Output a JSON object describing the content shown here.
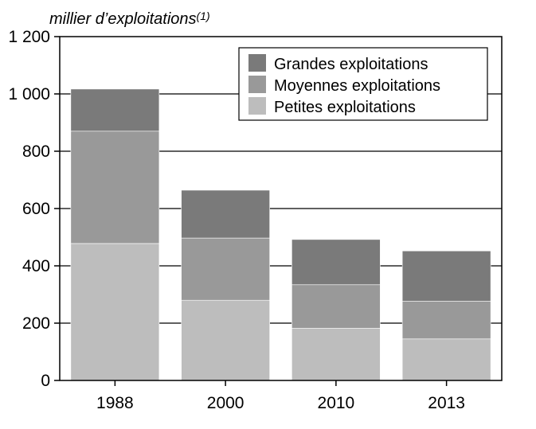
{
  "chart_data": {
    "type": "bar",
    "stacked": true,
    "title": "",
    "xlabel": "",
    "ylabel": "millier d’exploitations",
    "ylabel_note": "(1)",
    "ylim": [
      0,
      1200
    ],
    "yticks": [
      0,
      200,
      400,
      600,
      800,
      1000,
      1200
    ],
    "ytick_labels": [
      "0",
      "200",
      "400",
      "600",
      "800",
      "1 000",
      "1 200"
    ],
    "categories": [
      "1988",
      "2000",
      "2010",
      "2013"
    ],
    "series": [
      {
        "name": "Petites exploitations",
        "color": "#bdbdbd",
        "values": [
          478,
          280,
          182,
          145
        ]
      },
      {
        "name": "Moyennes exploitations",
        "color": "#999999",
        "values": [
          392,
          217,
          152,
          132
        ]
      },
      {
        "name": "Grandes exploitations",
        "color": "#7a7a7a",
        "values": [
          147,
          167,
          158,
          175
        ]
      }
    ],
    "legend": {
      "placement": "top-right",
      "order": [
        "Grandes exploitations",
        "Moyennes exploitations",
        "Petites exploitations"
      ]
    },
    "grid": true
  }
}
